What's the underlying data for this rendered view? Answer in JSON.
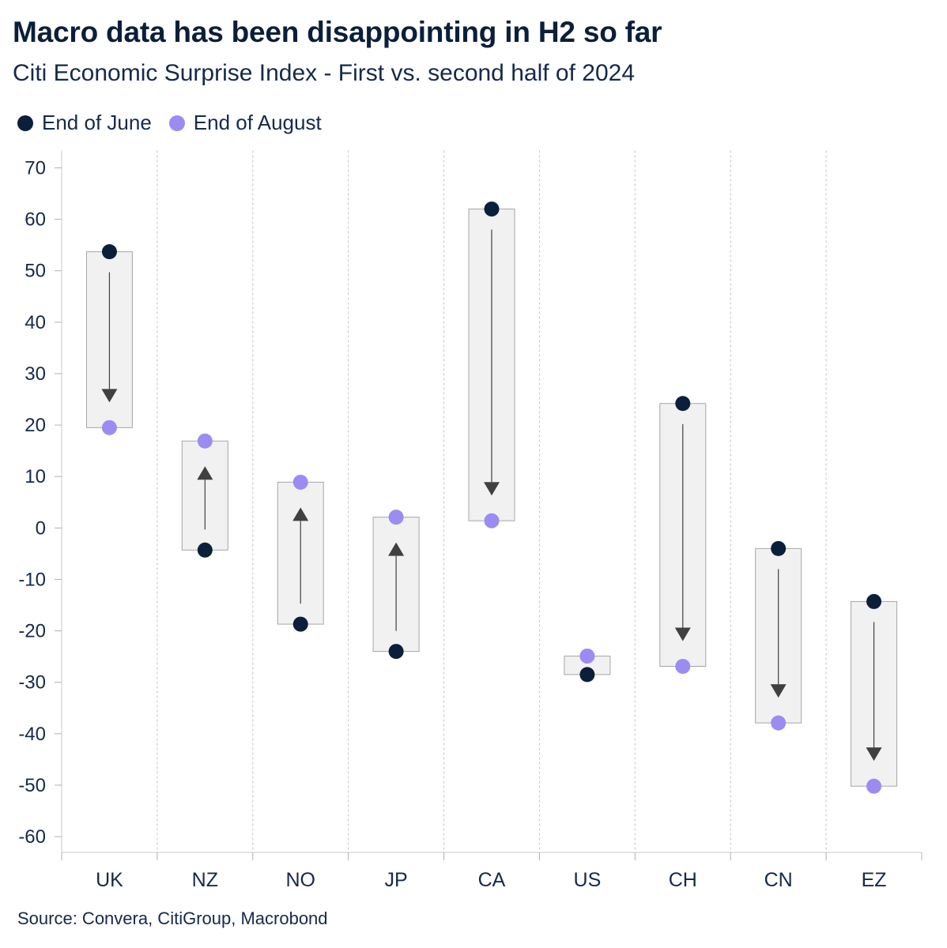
{
  "header": {
    "title": "Macro data has been disappointing in H2 so far",
    "subtitle": "Citi Economic Surprise Index - First vs. second half of 2024"
  },
  "legend": {
    "items": [
      {
        "label": "End of June",
        "color": "#0b1f3b"
      },
      {
        "label": "End of August",
        "color": "#9b8cf2"
      }
    ]
  },
  "footer": {
    "source": "Source: Convera, CitiGroup, Macrobond"
  },
  "colors": {
    "june": "#0b1f3b",
    "august": "#9b8cf2",
    "range_fill": "#f1f1f1",
    "range_stroke": "#a6a6a6",
    "arrow": "#404040"
  },
  "chart_data": {
    "type": "scatter",
    "title": "Macro data has been disappointing in H2 so far",
    "subtitle": "Citi Economic Surprise Index - First vs. second half of 2024",
    "xlabel": "",
    "ylabel": "",
    "ylim": [
      -60,
      70
    ],
    "y_ticks": [
      70,
      60,
      50,
      40,
      30,
      20,
      10,
      0,
      -10,
      -20,
      -30,
      -40,
      -50,
      -60
    ],
    "grid": "vertical dotted separators",
    "legend_position": "top-left",
    "categories": [
      "UK",
      "NZ",
      "NO",
      "JP",
      "CA",
      "US",
      "CH",
      "CN",
      "EZ"
    ],
    "series": [
      {
        "name": "End of June",
        "values": [
          53.7,
          -4.3,
          -18.7,
          -24.0,
          62.0,
          -28.5,
          24.2,
          -4.0,
          -14.3
        ]
      },
      {
        "name": "End of August",
        "values": [
          19.5,
          16.9,
          8.9,
          2.1,
          1.4,
          -24.9,
          -26.9,
          -37.9,
          -50.2
        ]
      }
    ]
  }
}
